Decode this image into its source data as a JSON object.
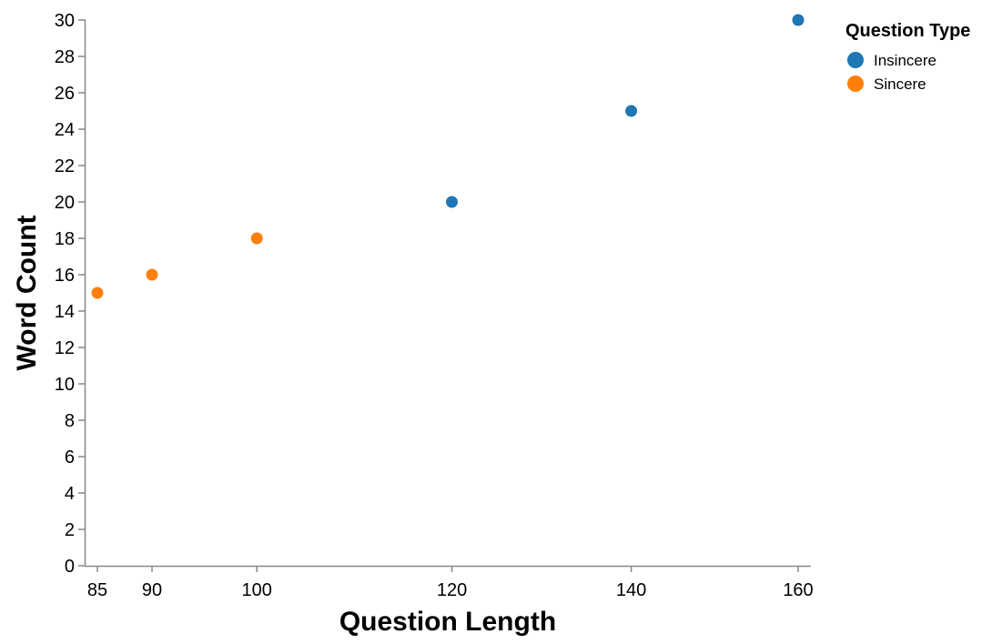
{
  "chart_data": {
    "type": "scatter",
    "title": "",
    "xlabel": "Question Length",
    "ylabel": "Word Count",
    "x_ticks": [
      85,
      90,
      100,
      120,
      140,
      160
    ],
    "y_ticks": [
      0,
      2,
      4,
      6,
      8,
      10,
      12,
      14,
      16,
      18,
      20,
      22,
      24,
      26,
      28,
      30
    ],
    "ylim": [
      0,
      30
    ],
    "x_scale": "sqrt",
    "grid": false,
    "legend": {
      "title": "Question Type",
      "position": "top-right"
    },
    "series": [
      {
        "name": "Insincere",
        "color": "#1f77b4",
        "points": [
          {
            "x": 120,
            "y": 20
          },
          {
            "x": 140,
            "y": 25
          },
          {
            "x": 160,
            "y": 30
          }
        ]
      },
      {
        "name": "Sincere",
        "color": "#ff7f0e",
        "points": [
          {
            "x": 85,
            "y": 15
          },
          {
            "x": 90,
            "y": 16
          },
          {
            "x": 100,
            "y": 18
          }
        ]
      }
    ]
  }
}
